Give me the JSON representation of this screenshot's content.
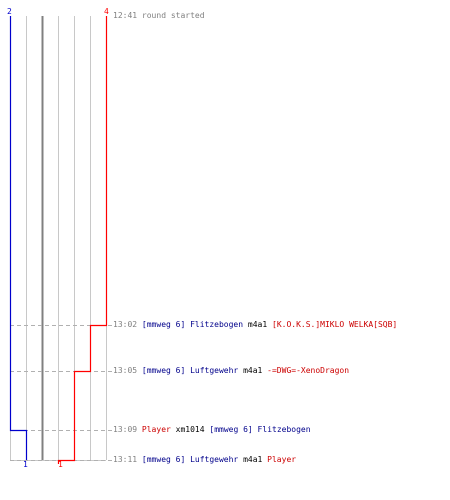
{
  "colors": {
    "team_blue": "#0000cc",
    "team_red": "#ff0000",
    "grid": "#c8c8c8",
    "center_line": "#808080",
    "dash": "#b0b0b0"
  },
  "score_labels": {
    "top_left": "2",
    "top_right": "4",
    "bottom_blue": "1",
    "bottom_red": "1"
  },
  "events": [
    {
      "time": "12:41",
      "segments": [
        {
          "text": "round started",
          "style": "gray"
        }
      ]
    },
    {
      "time": "13:02",
      "segments": [
        {
          "text": "[mmweg 6] Flitzebogen",
          "style": "blue"
        },
        {
          "text": "m4a1",
          "style": "black"
        },
        {
          "text": "[K.O.K.S.]MIKLO WELKA[SQB]",
          "style": "red"
        }
      ]
    },
    {
      "time": "13:05",
      "segments": [
        {
          "text": "[mmweg 6] Luftgewehr",
          "style": "blue"
        },
        {
          "text": "m4a1",
          "style": "black"
        },
        {
          "text": "-=DWG=-XenoDragon",
          "style": "red"
        }
      ]
    },
    {
      "time": "13:09",
      "segments": [
        {
          "text": "Player",
          "style": "red"
        },
        {
          "text": "xm1014",
          "style": "black"
        },
        {
          "text": "[mmweg 6] Flitzebogen",
          "style": "blue"
        }
      ]
    },
    {
      "time": "13:11",
      "segments": [
        {
          "text": "[mmweg 6] Luftgewehr",
          "style": "blue"
        },
        {
          "text": "m4a1",
          "style": "black"
        },
        {
          "text": "Player",
          "style": "red"
        }
      ]
    }
  ]
}
